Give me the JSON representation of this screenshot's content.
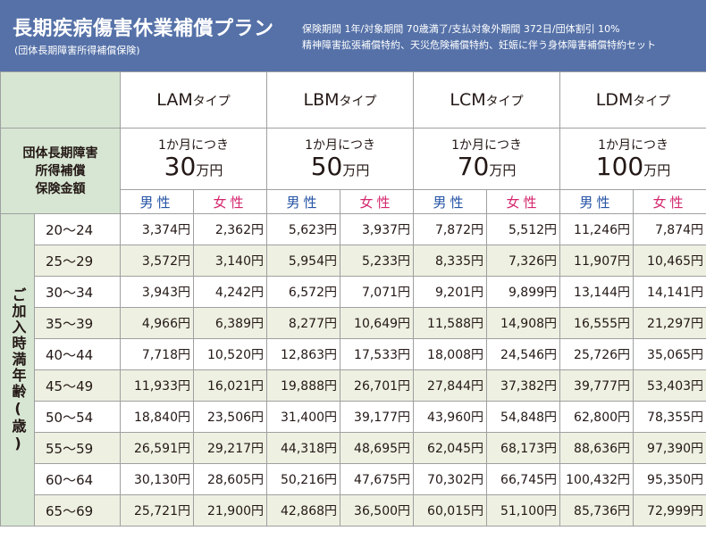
{
  "header": {
    "title": "長期疾病傷害休業補償プラン",
    "subtitle": "(団体長期障害所得補償保険)",
    "info_line1": "保険期間 1年/対象期間 70歳満了/支払対象外期間 372日/団体割引 10%",
    "info_line2": "精神障害拡張補償特約、天災危険補償特約、妊娠に伴う身体障害補償特約セット"
  },
  "plans": [
    {
      "name": "LAM",
      "suffix": "タイプ",
      "per_month": "1か月につき",
      "amount": "30",
      "unit": "万円"
    },
    {
      "name": "LBM",
      "suffix": "タイプ",
      "per_month": "1か月につき",
      "amount": "50",
      "unit": "万円"
    },
    {
      "name": "LCM",
      "suffix": "タイプ",
      "per_month": "1か月につき",
      "amount": "70",
      "unit": "万円"
    },
    {
      "name": "LDM",
      "suffix": "タイプ",
      "per_month": "1か月につき",
      "amount": "100",
      "unit": "万円"
    }
  ],
  "amount_label": [
    "団体長期障害",
    "所得補償",
    "保険金額"
  ],
  "gender": {
    "male": "男性",
    "female": "女性"
  },
  "age_axis_label": "ご加入時満年齢(歳)",
  "rows": [
    {
      "age": "20〜24",
      "values": [
        "3,374円",
        "2,362円",
        "5,623円",
        "3,937円",
        "7,872円",
        "5,512円",
        "11,246円",
        "7,874円"
      ]
    },
    {
      "age": "25〜29",
      "values": [
        "3,572円",
        "3,140円",
        "5,954円",
        "5,233円",
        "8,335円",
        "7,326円",
        "11,907円",
        "10,465円"
      ]
    },
    {
      "age": "30〜34",
      "values": [
        "3,943円",
        "4,242円",
        "6,572円",
        "7,071円",
        "9,201円",
        "9,899円",
        "13,144円",
        "14,141円"
      ]
    },
    {
      "age": "35〜39",
      "values": [
        "4,966円",
        "6,389円",
        "8,277円",
        "10,649円",
        "11,588円",
        "14,908円",
        "16,555円",
        "21,297円"
      ]
    },
    {
      "age": "40〜44",
      "values": [
        "7,718円",
        "10,520円",
        "12,863円",
        "17,533円",
        "18,008円",
        "24,546円",
        "25,726円",
        "35,065円"
      ]
    },
    {
      "age": "45〜49",
      "values": [
        "11,933円",
        "16,021円",
        "19,888円",
        "26,701円",
        "27,844円",
        "37,382円",
        "39,777円",
        "53,403円"
      ]
    },
    {
      "age": "50〜54",
      "values": [
        "18,840円",
        "23,506円",
        "31,400円",
        "39,177円",
        "43,960円",
        "54,848円",
        "62,800円",
        "78,355円"
      ]
    },
    {
      "age": "55〜59",
      "values": [
        "26,591円",
        "29,217円",
        "44,318円",
        "48,695円",
        "62,045円",
        "68,173円",
        "88,636円",
        "97,390円"
      ]
    },
    {
      "age": "60〜64",
      "values": [
        "30,130円",
        "28,605円",
        "50,216円",
        "47,675円",
        "70,302円",
        "66,745円",
        "100,432円",
        "95,350円"
      ]
    },
    {
      "age": "65〜69",
      "values": [
        "25,721円",
        "21,900円",
        "42,868円",
        "36,500円",
        "60,015円",
        "51,100円",
        "85,736円",
        "72,999円"
      ]
    }
  ],
  "colors": {
    "header_bg": "#5571a8",
    "label_bg": "#d7e6d3",
    "band_bg": "#eef0e2",
    "male": "#2453a5",
    "female": "#d4266e"
  }
}
